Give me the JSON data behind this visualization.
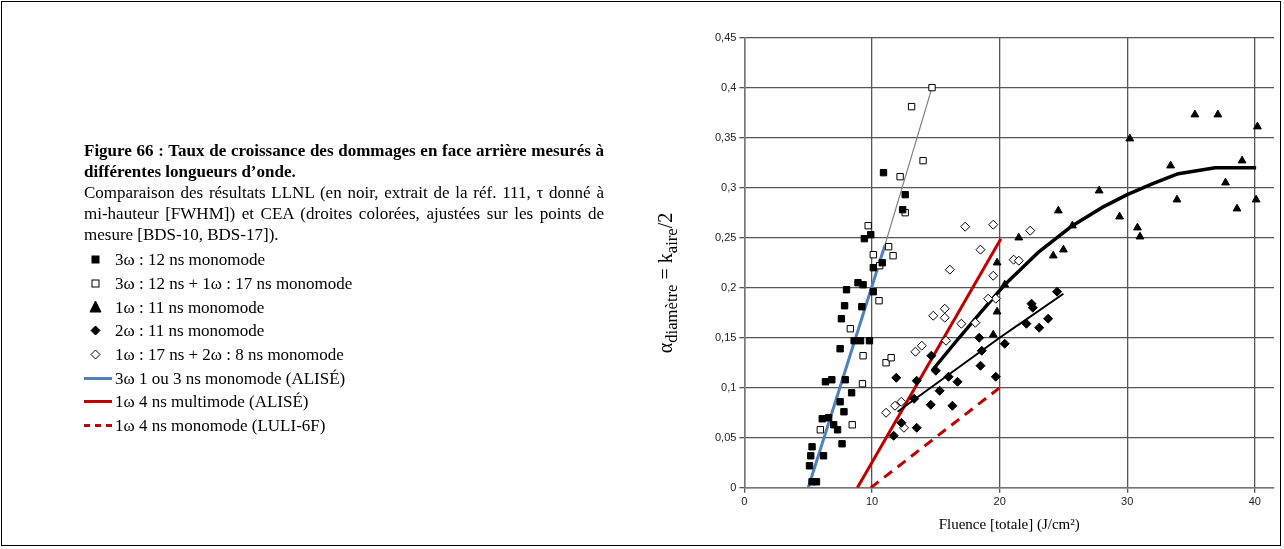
{
  "chart_data": {
    "type": "scatter",
    "title": "Figure 66 : Taux de croissance des dommages en face arrière mesurés à différentes longueurs d’onde.",
    "subtitle": "Comparaison des résultats LLNL (en noir, extrait de la réf. 111, τ donné à mi-hauteur [FWHM]) et CEA (droites colorées, ajustées sur les points de mesure [BDS-10, BDS-17]).",
    "xlabel": "Fluence [totale] (J/cm²)",
    "ylabel": "α$_{diamètre}$ = k$_{aire}$/2",
    "xlim": [
      0,
      41.5
    ],
    "ylim": [
      0,
      0.45
    ],
    "xticks": [
      0,
      10,
      20,
      30,
      40
    ],
    "yticks": [
      0,
      {
        "value": 0.05,
        "label": "0,05"
      },
      {
        "value": 0.1,
        "label": "0,1"
      },
      {
        "value": 0.15,
        "label": "0,15"
      },
      {
        "value": 0.2,
        "label": "0,2"
      },
      {
        "value": 0.25,
        "label": "0,25"
      },
      {
        "value": 0.3,
        "label": "0,3"
      },
      {
        "value": 0.35,
        "label": "0,35"
      },
      {
        "value": 0.4,
        "label": "0,4"
      },
      {
        "value": 0.45,
        "label": "0,45"
      }
    ],
    "grid": true,
    "legend": "left",
    "series": [
      {
        "type": "scatter",
        "name": "3ω : 12 ns  monomode",
        "color": "#000000",
        "marker": "square",
        "x": [
          10.9,
          12.6,
          12.4,
          9.4,
          9.9,
          10.1,
          10.8,
          8.0,
          8.9,
          9.3,
          10.1,
          7.85,
          7.6,
          9.2,
          7.5,
          8.6,
          9.1,
          9.8,
          6.35,
          6.85,
          7.9,
          8.4,
          7.5,
          7.8,
          6.1,
          6.6,
          7.0,
          7.3,
          7.65,
          6.2,
          5.3,
          5.2,
          5.1,
          5.65,
          5.3
        ],
        "values": [
          0.315,
          0.293,
          0.278,
          0.249,
          0.253,
          0.22,
          0.225,
          0.198,
          0.205,
          0.203,
          0.196,
          0.182,
          0.169,
          0.181,
          0.139,
          0.147,
          0.147,
          0.147,
          0.106,
          0.108,
          0.108,
          0.095,
          0.086,
          0.076,
          0.069,
          0.07,
          0.063,
          0.058,
          0.044,
          0.032,
          0.041,
          0.032,
          0.022,
          0.006,
          0.006
        ]
      },
      {
        "type": "scatter",
        "name": "3ω : 12 ns + 1ω : 17 ns monomode",
        "color": "#ffffff",
        "marker": "square",
        "x": [
          14.7,
          13.1,
          14.0,
          12.2,
          12.6,
          9.7,
          10.1,
          11.3,
          11.65,
          10.6,
          10.55,
          8.3,
          9.3,
          11.1,
          11.5,
          9.25,
          8.45,
          5.95
        ],
        "values": [
          0.4,
          0.381,
          0.327,
          0.311,
          0.275,
          0.262,
          0.233,
          0.241,
          0.232,
          0.222,
          0.187,
          0.159,
          0.132,
          0.125,
          0.13,
          0.104,
          0.063,
          0.058
        ]
      },
      {
        "type": "scatter",
        "name": "1ω : 11 ns monomode",
        "color": "#000000",
        "marker": "triangle",
        "x": [
          35.3,
          37.1,
          40.2,
          30.2,
          33.4,
          39.0,
          37.7,
          33.9,
          40.1,
          38.6,
          27.8,
          29.4,
          30.8,
          31.0,
          24.6,
          25.7,
          21.5,
          25.0,
          24.2,
          19.8,
          20.4,
          19.8,
          19.5
        ],
        "values": [
          0.373,
          0.373,
          0.361,
          0.349,
          0.322,
          0.327,
          0.305,
          0.288,
          0.288,
          0.279,
          0.297,
          0.271,
          0.26,
          0.251,
          0.277,
          0.262,
          0.25,
          0.238,
          0.232,
          0.225,
          0.203,
          0.176,
          0.153
        ]
      },
      {
        "type": "scatter",
        "name": "2ω : 11 ns monomode",
        "color": "#000000",
        "marker": "diamond",
        "x": [
          24.5,
          22.5,
          22.6,
          23.8,
          23.1,
          22.1,
          20.4,
          19.7,
          11.9,
          11.7,
          12.3,
          13.5,
          13.5,
          13.3,
          14.6,
          14.65,
          15.0,
          15.3,
          16.0,
          16.3,
          16.7,
          18.4,
          18.5,
          18.6
        ],
        "values": [
          0.196,
          0.184,
          0.18,
          0.169,
          0.16,
          0.164,
          0.144,
          0.111,
          0.11,
          0.052,
          0.065,
          0.06,
          0.107,
          0.089,
          0.083,
          0.132,
          0.117,
          0.097,
          0.111,
          0.082,
          0.106,
          0.15,
          0.122,
          0.137
        ]
      },
      {
        "type": "scatter",
        "name": "1ω : 17 ns + 2ω : 8 ns monomode",
        "color": "#ffffff",
        "marker": "diamond",
        "x": [
          17.3,
          19.5,
          16.1,
          18.5,
          19.5,
          22.4,
          21.1,
          21.5,
          19.7,
          14.8,
          15.7,
          15.7,
          17.0,
          18.1,
          19.1,
          13.4,
          13.9,
          15.8,
          11.1,
          11.8,
          12.3,
          12.5
        ],
        "values": [
          0.261,
          0.263,
          0.218,
          0.238,
          0.212,
          0.257,
          0.228,
          0.227,
          0.189,
          0.172,
          0.179,
          0.17,
          0.164,
          0.165,
          0.189,
          0.136,
          0.142,
          0.147,
          0.075,
          0.082,
          0.086,
          0.06
        ]
      },
      {
        "type": "line",
        "color": "#7f7f7f",
        "x": [
          11.0,
          14.7
        ],
        "values": [
          0.242,
          0.4
        ]
      },
      {
        "type": "line",
        "color": "#000000",
        "x": [
          14.7,
          16.5,
          18.5,
          20.4,
          23,
          25.7,
          28,
          30,
          32,
          34.0,
          36.9,
          40.1
        ],
        "values": [
          0.117,
          0.145,
          0.175,
          0.203,
          0.235,
          0.262,
          0.28,
          0.293,
          0.304,
          0.314,
          0.32,
          0.32
        ]
      },
      {
        "type": "line",
        "color": "#000000",
        "x": [
          12.0,
          16.1,
          20.0,
          25.0
        ],
        "values": [
          0.076,
          0.114,
          0.15,
          0.194
        ]
      },
      {
        "type": "line",
        "name": "3ω 1 ou 3 ns monomode (ALISÉ)",
        "color": "#4f81bd",
        "line_style": "solid",
        "x": [
          5.0,
          11.0
        ],
        "values": [
          0,
          0.242
        ]
      },
      {
        "type": "line",
        "name": "1ω 4 ns multimode (ALISÉ)",
        "color": "#c00000",
        "line_style": "solid",
        "x": [
          8.85,
          20.1
        ],
        "values": [
          0,
          0.249
        ]
      },
      {
        "type": "line",
        "name": "1ω 4 ns monomode (LULI-6F)",
        "color": "#c00000",
        "line_style": "dashed",
        "x": [
          9.9,
          20.0
        ],
        "values": [
          0,
          0.1
        ]
      }
    ]
  }
}
